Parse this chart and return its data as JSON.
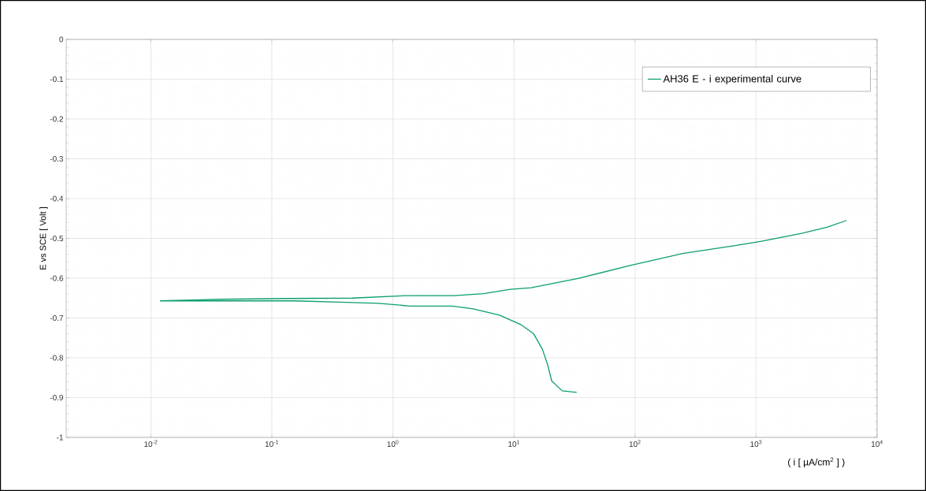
{
  "chart_data": {
    "type": "line",
    "xlabel": "( i [ µA/cm$^{2}$ ] )",
    "ylabel": "E vs SCE [ Volt ]",
    "log": "x",
    "grid": true,
    "legend": "top right",
    "marker": "none",
    "line_style": "solid",
    "xlim": [
      0.002,
      10000
    ],
    "ylim": [
      -1,
      0
    ],
    "xticks": [
      {
        "value": 0.01,
        "label": "10$^{-2}$"
      },
      {
        "value": 0.1,
        "label": "10$^{-1}$"
      },
      {
        "value": 1,
        "label": "10$^{0}$"
      },
      {
        "value": 10,
        "label": "10$^{1}$"
      },
      {
        "value": 100,
        "label": "10$^{2}$"
      },
      {
        "value": 1000,
        "label": "10$^{3}$"
      },
      {
        "value": 10000,
        "label": "10$^{4}$"
      }
    ],
    "yticks": [
      -1,
      -0.9,
      -0.8,
      -0.7,
      -0.6,
      -0.5,
      -0.4,
      -0.3,
      -0.2,
      -0.1,
      0
    ],
    "series": [
      {
        "name": "AH36 E - i experimental curve",
        "color": "#0a9e6c",
        "x": [
          33,
          25,
          20.5,
          19,
          17.2,
          14.5,
          11.3,
          7.6,
          4.6,
          3.1,
          1.39,
          0.76,
          0.36,
          0.155,
          0.023,
          0.012,
          0.038,
          0.133,
          0.46,
          1.26,
          3.2,
          5.6,
          9.3,
          13.8,
          33.7,
          91,
          248,
          671,
          1107,
          2335,
          3840,
          5580
        ],
        "values": [
          -0.887,
          -0.883,
          -0.858,
          -0.818,
          -0.779,
          -0.739,
          -0.716,
          -0.693,
          -0.677,
          -0.67,
          -0.67,
          -0.663,
          -0.66,
          -0.657,
          -0.657,
          -0.657,
          -0.653,
          -0.651,
          -0.65,
          -0.644,
          -0.644,
          -0.639,
          -0.628,
          -0.624,
          -0.601,
          -0.568,
          -0.538,
          -0.518,
          -0.507,
          -0.488,
          -0.472,
          -0.455
        ]
      }
    ]
  }
}
